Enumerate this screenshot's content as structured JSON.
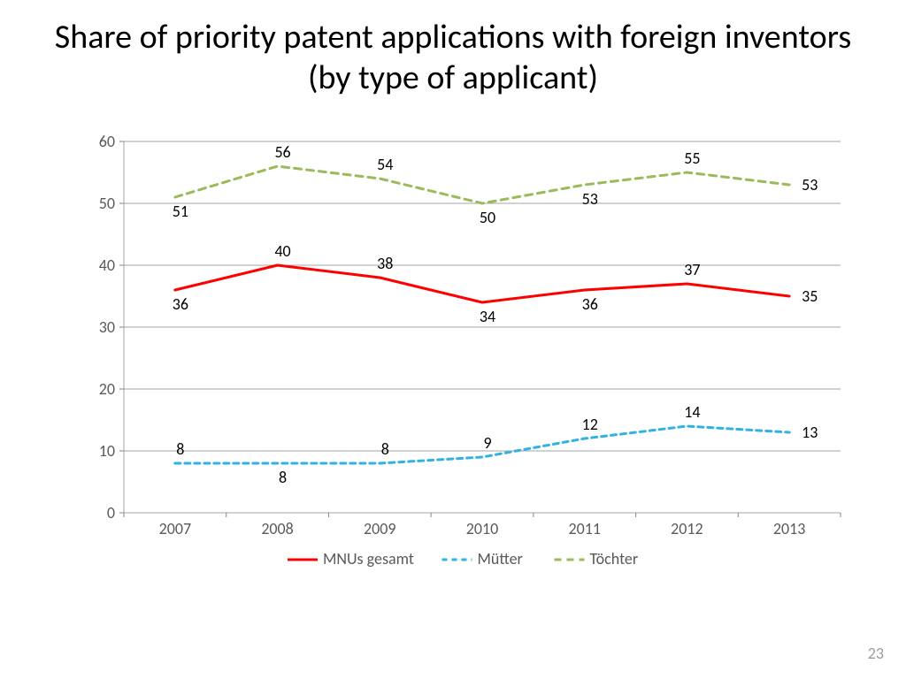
{
  "title": "Share of priority patent applications with foreign inventors (by type of applicant)",
  "page_number": "23",
  "chart": {
    "type": "line",
    "categories": [
      "2007",
      "2008",
      "2009",
      "2010",
      "2011",
      "2012",
      "2013"
    ],
    "ylim": [
      0,
      60
    ],
    "ytick_step": 10,
    "yticks": [
      "0",
      "10",
      "20",
      "30",
      "40",
      "50",
      "60"
    ],
    "plot_border_color": "#868686",
    "grid_color": "#868686",
    "grid_width": 0.75,
    "background_color": "#ffffff",
    "tick_mark_color": "#868686",
    "axis_label_fontsize": 18,
    "data_label_fontsize": 18,
    "legend_fontsize": 18,
    "line_width": 3,
    "series": [
      {
        "name": "MNUs gesamt",
        "color": "#ff0000",
        "dash": "solid",
        "values": [
          36,
          40,
          38,
          34,
          36,
          37,
          35
        ],
        "label_pos": [
          "below",
          "above",
          "above",
          "below",
          "below",
          "above",
          "right"
        ]
      },
      {
        "name": "Mütter",
        "color": "#31b2e2",
        "dash": "6,5",
        "values": [
          8,
          8,
          8,
          9,
          12,
          14,
          13
        ],
        "label_pos": [
          "above",
          "below",
          "above",
          "above",
          "above",
          "above",
          "right"
        ]
      },
      {
        "name": "Töchter",
        "color": "#9bba59",
        "dash": "8,6",
        "values": [
          51,
          56,
          54,
          50,
          53,
          55,
          53
        ],
        "label_pos": [
          "below",
          "above",
          "above",
          "below",
          "below",
          "above",
          "right"
        ]
      }
    ]
  }
}
